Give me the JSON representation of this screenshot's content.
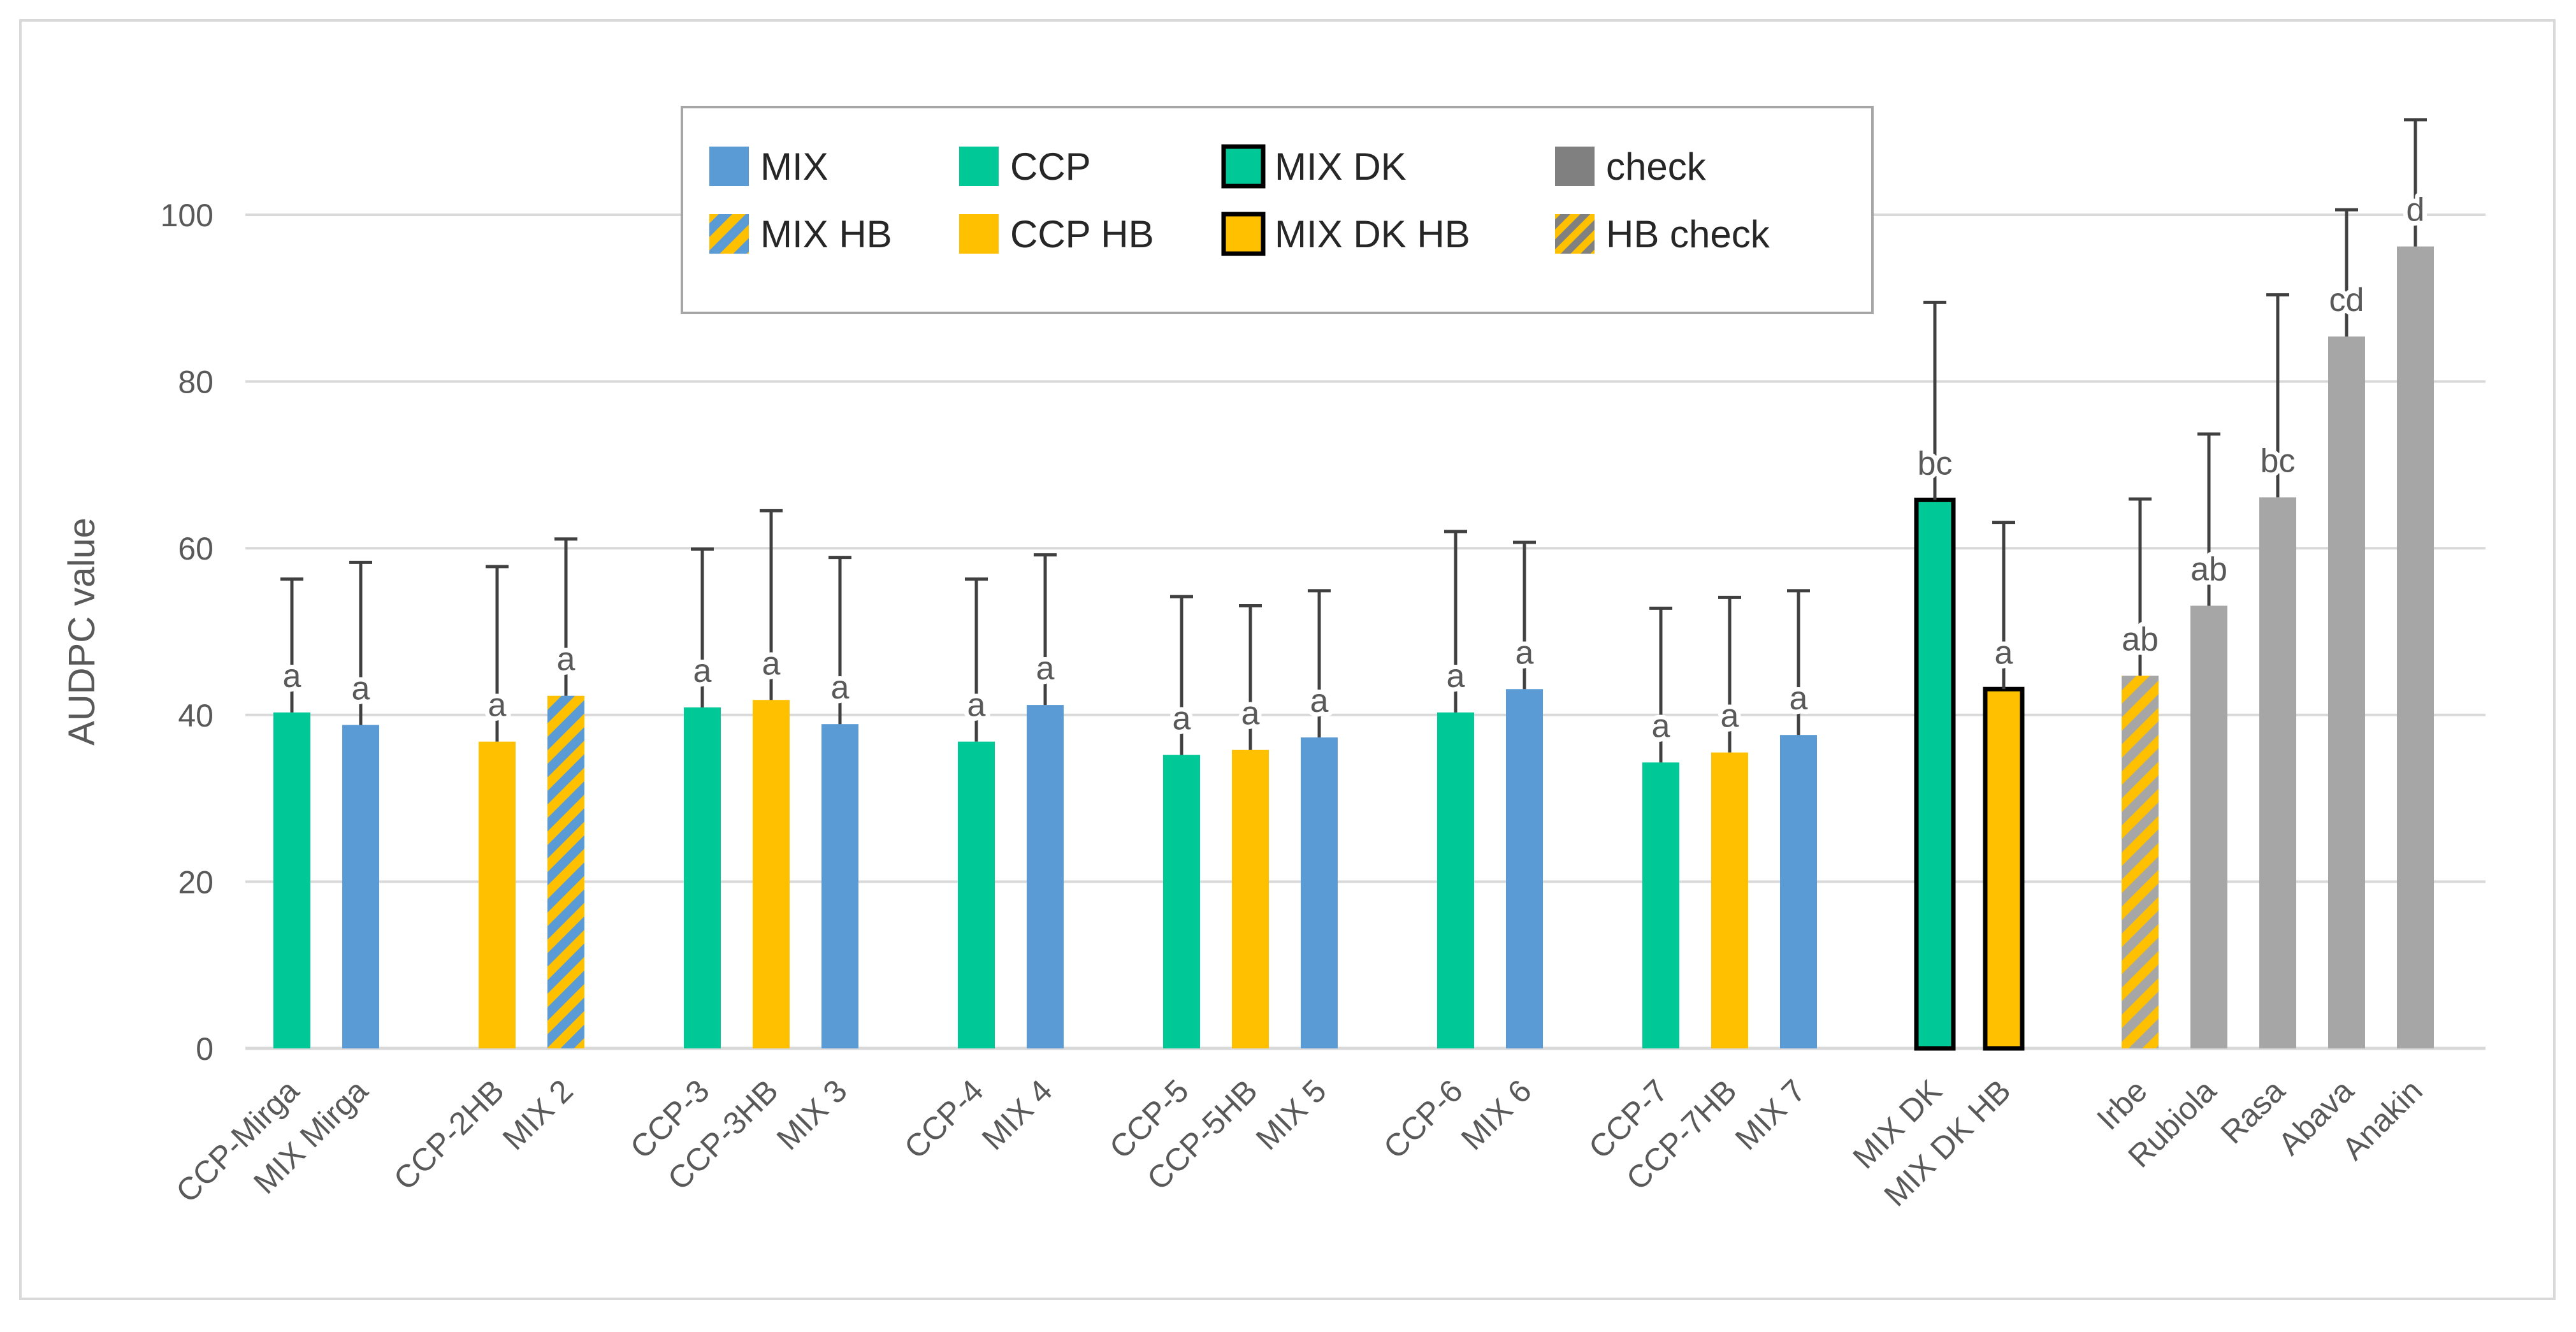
{
  "chart_data": {
    "type": "bar",
    "ylabel": "AUDPC value",
    "ylim": [
      0,
      100
    ],
    "yticks": [
      0,
      20,
      40,
      60,
      80,
      100
    ],
    "grid": true,
    "legend_position": "top",
    "colors": {
      "MIX": "#5b9bd5",
      "CCP": "#00c896",
      "HB": "#ffc000",
      "check": "#a6a6a6",
      "check_legend": "#808080",
      "outline": "#000000"
    },
    "legend": [
      {
        "label": "MIX",
        "style": "MIX"
      },
      {
        "label": "CCP",
        "style": "CCP"
      },
      {
        "label": "MIX DK",
        "style": "MIXDK"
      },
      {
        "label": "check",
        "style": "checkLegend"
      },
      {
        "label": "MIX HB",
        "style": "MIXHB"
      },
      {
        "label": "CCP HB",
        "style": "CCPHB"
      },
      {
        "label": "MIX DK HB",
        "style": "MIXDKHB"
      },
      {
        "label": "HB check",
        "style": "HBcheck"
      }
    ],
    "groups": [
      {
        "bars": [
          {
            "label": "CCP-Mirga",
            "value": 40.3,
            "err": 16,
            "sig": "a",
            "style": "CCP"
          },
          {
            "label": "MIX Mirga",
            "value": 38.8,
            "err": 19.5,
            "sig": "a",
            "style": "MIX"
          }
        ]
      },
      {
        "bars": [
          {
            "label": "CCP-2HB",
            "value": 36.8,
            "err": 21,
            "sig": "a",
            "style": "CCPHB"
          },
          {
            "label": "MIX 2",
            "value": 42.3,
            "err": 18.8,
            "sig": "a",
            "style": "MIXHB"
          }
        ]
      },
      {
        "bars": [
          {
            "label": "CCP-3",
            "value": 40.9,
            "err": 19,
            "sig": "a",
            "style": "CCP"
          },
          {
            "label": "CCP-3HB",
            "value": 41.8,
            "err": 22.7,
            "sig": "a",
            "style": "CCPHB"
          },
          {
            "label": "MIX 3",
            "value": 38.9,
            "err": 20,
            "sig": "a",
            "style": "MIX"
          }
        ]
      },
      {
        "bars": [
          {
            "label": "CCP-4",
            "value": 36.8,
            "err": 19.5,
            "sig": "a",
            "style": "CCP"
          },
          {
            "label": "MIX 4",
            "value": 41.2,
            "err": 18,
            "sig": "a",
            "style": "MIX"
          }
        ]
      },
      {
        "bars": [
          {
            "label": "CCP-5",
            "value": 35.2,
            "err": 19,
            "sig": "a",
            "style": "CCP"
          },
          {
            "label": "CCP-5HB",
            "value": 35.8,
            "err": 17.3,
            "sig": "a",
            "style": "CCPHB"
          },
          {
            "label": "MIX 5",
            "value": 37.3,
            "err": 17.6,
            "sig": "a",
            "style": "MIX"
          }
        ]
      },
      {
        "bars": [
          {
            "label": "CCP-6",
            "value": 40.3,
            "err": 21.7,
            "sig": "a",
            "style": "CCP"
          },
          {
            "label": "MIX 6",
            "value": 43.1,
            "err": 17.6,
            "sig": "a",
            "style": "MIX"
          }
        ]
      },
      {
        "bars": [
          {
            "label": "CCP-7",
            "value": 34.3,
            "err": 18.5,
            "sig": "a",
            "style": "CCP"
          },
          {
            "label": "CCP-7HB",
            "value": 35.5,
            "err": 18.6,
            "sig": "a",
            "style": "CCPHB"
          },
          {
            "label": "MIX 7",
            "value": 37.6,
            "err": 17.3,
            "sig": "a",
            "style": "MIX"
          }
        ]
      },
      {
        "bars": [
          {
            "label": "MIX DK",
            "value": 65.8,
            "err": 23.7,
            "sig": "bc",
            "style": "MIXDK"
          },
          {
            "label": "MIX DK HB",
            "value": 43.1,
            "err": 20,
            "sig": "a",
            "style": "MIXDKHB"
          }
        ]
      },
      {
        "bars": [
          {
            "label": "Irbe",
            "value": 44.7,
            "err": 21.2,
            "sig": "ab",
            "style": "HBcheck"
          },
          {
            "label": "Rubiola",
            "value": 53.1,
            "err": 20.6,
            "sig": "ab",
            "style": "check"
          },
          {
            "label": "Rasa",
            "value": 66.1,
            "err": 24.3,
            "sig": "bc",
            "style": "check"
          },
          {
            "label": "Abava",
            "value": 85.4,
            "err": 15.2,
            "sig": "cd",
            "style": "check"
          },
          {
            "label": "Anakin",
            "value": 96.2,
            "err": 15.2,
            "sig": "d",
            "style": "check"
          }
        ]
      }
    ]
  }
}
